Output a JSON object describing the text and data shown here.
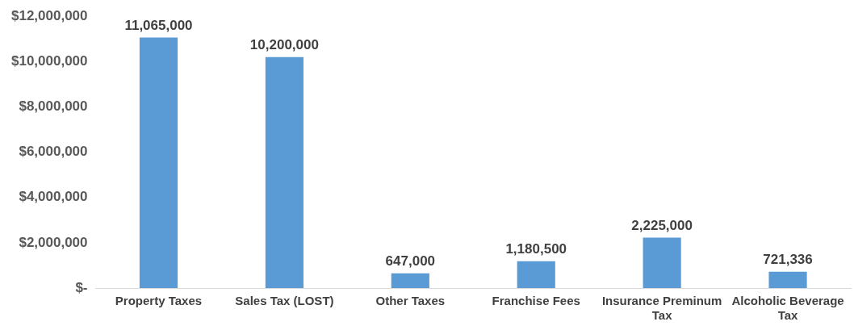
{
  "chart_data": {
    "type": "bar",
    "categories": [
      "Property Taxes",
      "Sales Tax (LOST)",
      "Other Taxes",
      "Franchise Fees",
      "Insurance Preminum Tax",
      "Alcoholic Beverage Tax"
    ],
    "values": [
      11065000,
      10200000,
      647000,
      1180500,
      2225000,
      721336
    ],
    "value_labels": [
      "11,065,000",
      "10,200,000",
      "647,000",
      "1,180,500",
      "2,225,000",
      "721,336"
    ],
    "color": "#5b9bd5",
    "ylim": [
      0,
      12000000
    ],
    "yticks": [
      {
        "value": 0,
        "label": "$-"
      },
      {
        "value": 2000000,
        "label": "$2,000,000"
      },
      {
        "value": 4000000,
        "label": "$4,000,000"
      },
      {
        "value": 6000000,
        "label": "$6,000,000"
      },
      {
        "value": 8000000,
        "label": "$8,000,000"
      },
      {
        "value": 10000000,
        "label": "$10,000,000"
      },
      {
        "value": 12000000,
        "label": "$12,000,000"
      }
    ],
    "grid": false,
    "legend": false
  }
}
